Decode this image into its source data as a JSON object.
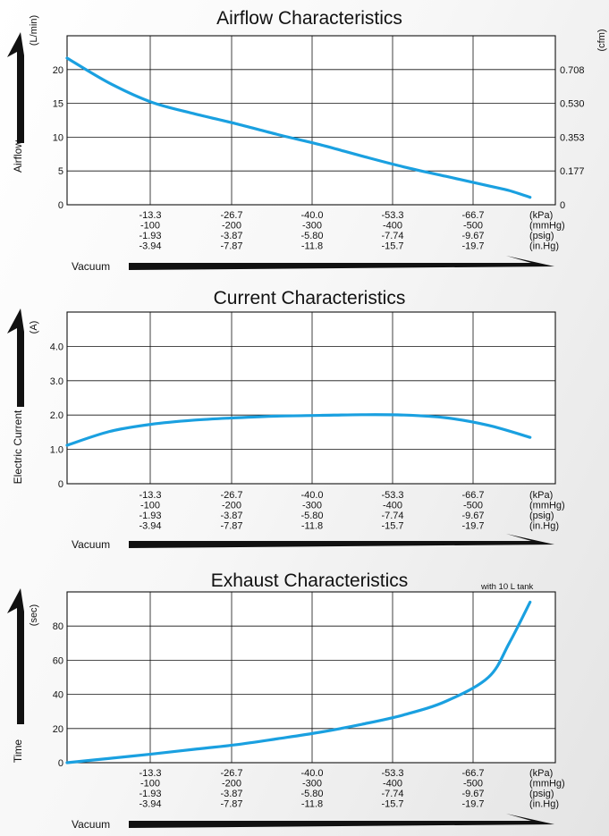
{
  "x_axis": {
    "ticks": [
      [
        "-13.3",
        "-100",
        "-1.93",
        "-3.94"
      ],
      [
        "-26.7",
        "-200",
        "-3.87",
        "-7.87"
      ],
      [
        "-40.0",
        "-300",
        "-5.80",
        "-11.8"
      ],
      [
        "-53.3",
        "-400",
        "-7.74",
        "-15.7"
      ],
      [
        "-66.7",
        "-500",
        "-9.67",
        "-19.7"
      ]
    ],
    "units": [
      "(kPa)",
      "(mmHg)",
      "(psig)",
      "(in.Hg)"
    ],
    "arrow_label": "Vacuum"
  },
  "colors": {
    "curve": "#1aa0e0",
    "arrow": "#111111",
    "grid": "#111111"
  },
  "chart_data": [
    {
      "type": "line",
      "title": "Airflow Characteristics",
      "ylabel": "Airflow",
      "y_unit": "(L/min)",
      "y2_unit": "(cfm)",
      "y_ticks": [
        "0",
        "5",
        "10",
        "15",
        "20"
      ],
      "y2_ticks": [
        "0",
        "0.177",
        "0.353",
        "0.530",
        "0.708"
      ],
      "ylim": [
        0,
        25
      ],
      "xlim": [
        0,
        -77.3
      ],
      "x_unit": "kPa",
      "grid": true,
      "series": [
        {
          "x": [
            0,
            -6.7,
            -13.3,
            -20,
            -26.7,
            -33.3,
            -40.0,
            -46.7,
            -53.3,
            -60,
            -66.7,
            -70,
            -73.3
          ],
          "y": [
            21.7,
            18,
            15.2,
            13.5,
            12,
            10.4,
            8.9,
            7.2,
            5.6,
            4.2,
            2.8,
            2.1,
            1.1
          ]
        }
      ]
    },
    {
      "type": "line",
      "title": "Current Characteristics",
      "ylabel": "Electric Current",
      "y_unit": "(A)",
      "y_ticks": [
        "0",
        "1.0",
        "2.0",
        "3.0",
        "4.0"
      ],
      "ylim": [
        0,
        5
      ],
      "xlim": [
        0,
        -77.3
      ],
      "x_unit": "kPa",
      "grid": true,
      "series": [
        {
          "x": [
            0,
            -6.7,
            -13.3,
            -20,
            -26.7,
            -33.3,
            -40.0,
            -46.7,
            -53.3,
            -60,
            -66.7,
            -73.3
          ],
          "y": [
            1.12,
            1.52,
            1.73,
            1.85,
            1.92,
            1.97,
            1.99,
            2.01,
            2.0,
            1.92,
            1.7,
            1.35
          ]
        }
      ]
    },
    {
      "type": "line",
      "title": "Exhaust Characteristics",
      "subtitle": "with 10 L tank",
      "ylabel": "Time",
      "y_unit": "(sec)",
      "y_ticks": [
        "0",
        "20",
        "40",
        "60",
        "80"
      ],
      "ylim": [
        0,
        100
      ],
      "xlim": [
        0,
        -77.3
      ],
      "x_unit": "kPa",
      "grid": true,
      "series": [
        {
          "x": [
            0,
            -6.7,
            -13.3,
            -20,
            -26.7,
            -33.3,
            -40.0,
            -46.7,
            -53.3,
            -60,
            -66.7,
            -70,
            -73.3
          ],
          "y": [
            0,
            2.5,
            5,
            7.8,
            10.5,
            14,
            17.8,
            22.5,
            28,
            36,
            50,
            70,
            94
          ]
        }
      ]
    }
  ]
}
